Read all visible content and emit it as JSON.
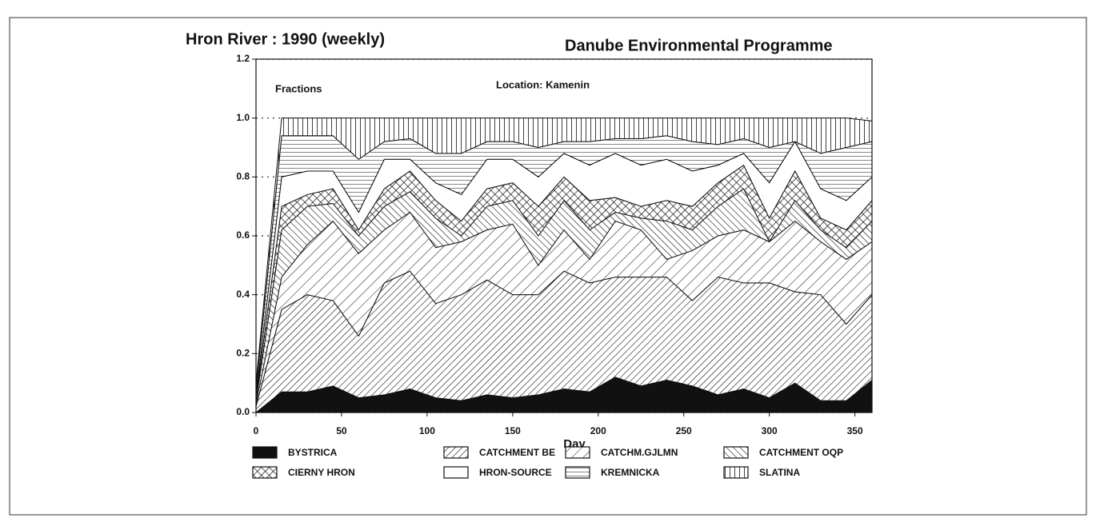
{
  "chart_data": {
    "type": "stacked_area",
    "title": "Hron River : 1990 (weekly)",
    "subtitle": "Danube Environmental Programme",
    "annotations": [
      "Fractions",
      "Location: Kamenin"
    ],
    "x_label": "Day",
    "x": [
      0,
      15,
      30,
      45,
      60,
      75,
      90,
      105,
      120,
      135,
      150,
      165,
      180,
      195,
      210,
      225,
      240,
      255,
      270,
      285,
      300,
      315,
      330,
      345,
      360
    ],
    "xlim": [
      0,
      360
    ],
    "xticks": [
      0,
      50,
      100,
      150,
      200,
      250,
      300,
      350
    ],
    "ylim": [
      0,
      1.2
    ],
    "yticks": [
      {
        "value": 0,
        "label": "0.0"
      },
      {
        "value": 0.2,
        "label": "0.2"
      },
      {
        "value": 0.4,
        "label": "0.4"
      },
      {
        "value": 0.6,
        "label": "0.6"
      },
      {
        "value": 0.8,
        "label": "0.8"
      },
      {
        "value": 1,
        "label": "1.0"
      },
      {
        "value": 1.2,
        "label": "1.2"
      }
    ],
    "grid": true,
    "series": [
      {
        "name": "BYSTRICA",
        "color": "#111111",
        "hatch": "solid",
        "values": [
          0.0,
          0.07,
          0.07,
          0.09,
          0.05,
          0.06,
          0.08,
          0.05,
          0.04,
          0.06,
          0.05,
          0.06,
          0.08,
          0.07,
          0.12,
          0.09,
          0.11,
          0.09,
          0.06,
          0.08,
          0.05,
          0.1,
          0.04,
          0.04,
          0.11
        ]
      },
      {
        "name": "CATCHMENT BE",
        "color": "#111111",
        "hatch": "diag-dense",
        "values": [
          0.02,
          0.28,
          0.33,
          0.29,
          0.21,
          0.38,
          0.4,
          0.32,
          0.36,
          0.39,
          0.35,
          0.34,
          0.4,
          0.37,
          0.34,
          0.37,
          0.35,
          0.29,
          0.4,
          0.36,
          0.39,
          0.31,
          0.36,
          0.26,
          0.29
        ]
      },
      {
        "name": "CATCHM.GJLMN",
        "color": "#111111",
        "hatch": "diag-sparse",
        "values": [
          0.01,
          0.11,
          0.17,
          0.27,
          0.28,
          0.18,
          0.2,
          0.19,
          0.18,
          0.17,
          0.24,
          0.1,
          0.14,
          0.08,
          0.19,
          0.16,
          0.06,
          0.17,
          0.14,
          0.18,
          0.14,
          0.24,
          0.18,
          0.22,
          0.18
        ]
      },
      {
        "name": "CATCHMENT OQP",
        "color": "#111111",
        "hatch": "back-diag",
        "values": [
          0.01,
          0.16,
          0.13,
          0.06,
          0.06,
          0.08,
          0.07,
          0.1,
          0.02,
          0.08,
          0.08,
          0.1,
          0.1,
          0.1,
          0.03,
          0.04,
          0.13,
          0.07,
          0.1,
          0.14,
          0.0,
          0.07,
          0.04,
          0.04,
          0.07
        ]
      },
      {
        "name": "CIERNY HRON",
        "color": "#111111",
        "hatch": "cross",
        "values": [
          0.01,
          0.08,
          0.04,
          0.05,
          0.02,
          0.06,
          0.07,
          0.06,
          0.05,
          0.06,
          0.06,
          0.1,
          0.08,
          0.1,
          0.05,
          0.04,
          0.07,
          0.08,
          0.08,
          0.08,
          0.08,
          0.1,
          0.04,
          0.06,
          0.07
        ]
      },
      {
        "name": "HRON-SOURCE",
        "color": "#ffffff",
        "hatch": "none",
        "values": [
          0.01,
          0.1,
          0.08,
          0.06,
          0.06,
          0.1,
          0.04,
          0.06,
          0.09,
          0.1,
          0.08,
          0.1,
          0.08,
          0.12,
          0.15,
          0.14,
          0.14,
          0.12,
          0.06,
          0.04,
          0.12,
          0.1,
          0.1,
          0.1,
          0.08
        ]
      },
      {
        "name": "KREMNICKA",
        "color": "#111111",
        "hatch": "horizontal",
        "values": [
          0.02,
          0.14,
          0.12,
          0.12,
          0.18,
          0.06,
          0.07,
          0.1,
          0.14,
          0.06,
          0.06,
          0.1,
          0.04,
          0.08,
          0.05,
          0.09,
          0.08,
          0.1,
          0.07,
          0.05,
          0.12,
          0.0,
          0.12,
          0.18,
          0.12
        ]
      },
      {
        "name": "SLATINA",
        "color": "#111111",
        "hatch": "vertical",
        "values": [
          0.02,
          0.06,
          0.06,
          0.06,
          0.14,
          0.08,
          0.07,
          0.12,
          0.12,
          0.08,
          0.08,
          0.1,
          0.08,
          0.08,
          0.07,
          0.07,
          0.06,
          0.08,
          0.09,
          0.07,
          0.1,
          0.08,
          0.12,
          0.1,
          0.07
        ]
      }
    ]
  }
}
